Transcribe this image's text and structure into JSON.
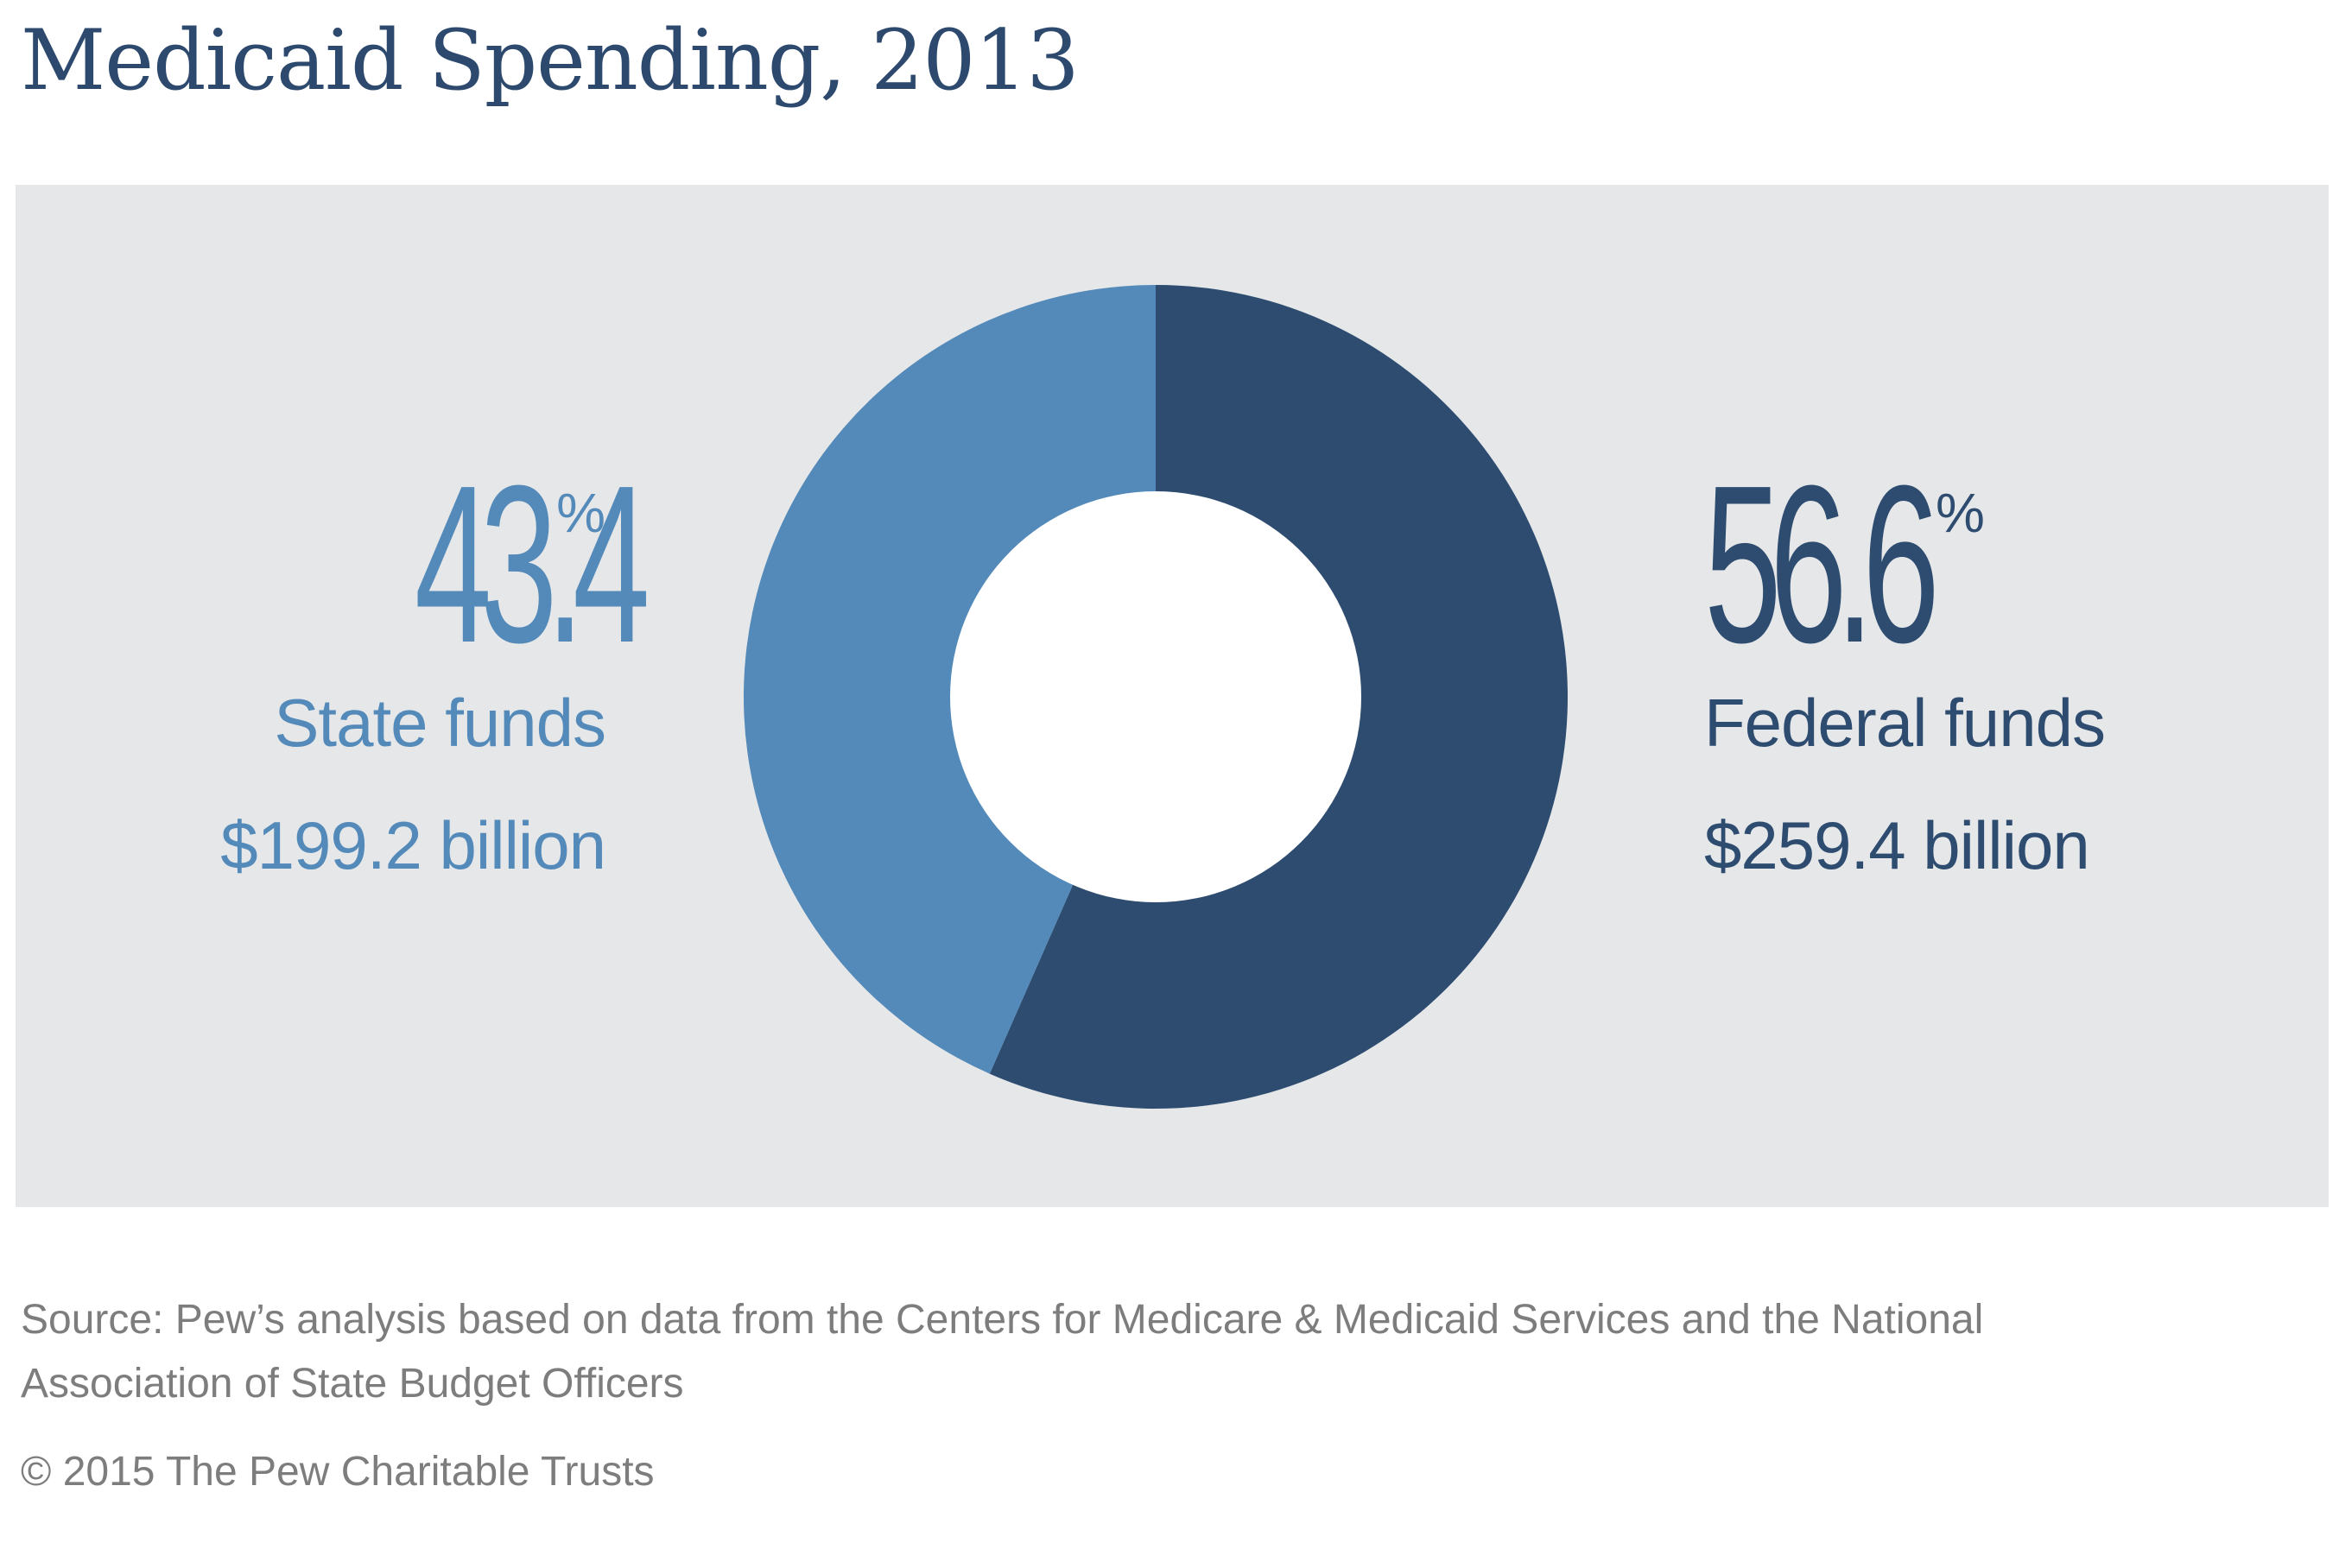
{
  "title": "Medicaid Spending, 2013",
  "colors": {
    "title": "#2d4a6e",
    "panel_bg": "#e6e7e9",
    "state": "#548ab9",
    "federal": "#2d4c70",
    "hole": "#ffffff",
    "footnote": "#7d7d7d"
  },
  "chart_data": {
    "type": "pie",
    "variant": "donut",
    "title": "Medicaid Spending, 2013",
    "start_angle_deg": 0,
    "direction": "clockwise",
    "slices": [
      {
        "name": "Federal funds",
        "percent": 56.6,
        "percent_value": "56.6",
        "percent_sign": "%",
        "amount_billion": 259.4,
        "amount_label": "$259.4 billion",
        "color": "#2d4c70"
      },
      {
        "name": "State funds",
        "percent": 43.4,
        "percent_value": "43.4",
        "percent_sign": "%",
        "amount_billion": 199.2,
        "amount_label": "$199.2 billion",
        "color": "#548ab9"
      }
    ]
  },
  "source": "Source: Pew’s analysis based on data from the Centers for Medicare & Medicaid Services and the National Association of State Budget Officers",
  "copyright": "© 2015 The Pew Charitable Trusts"
}
